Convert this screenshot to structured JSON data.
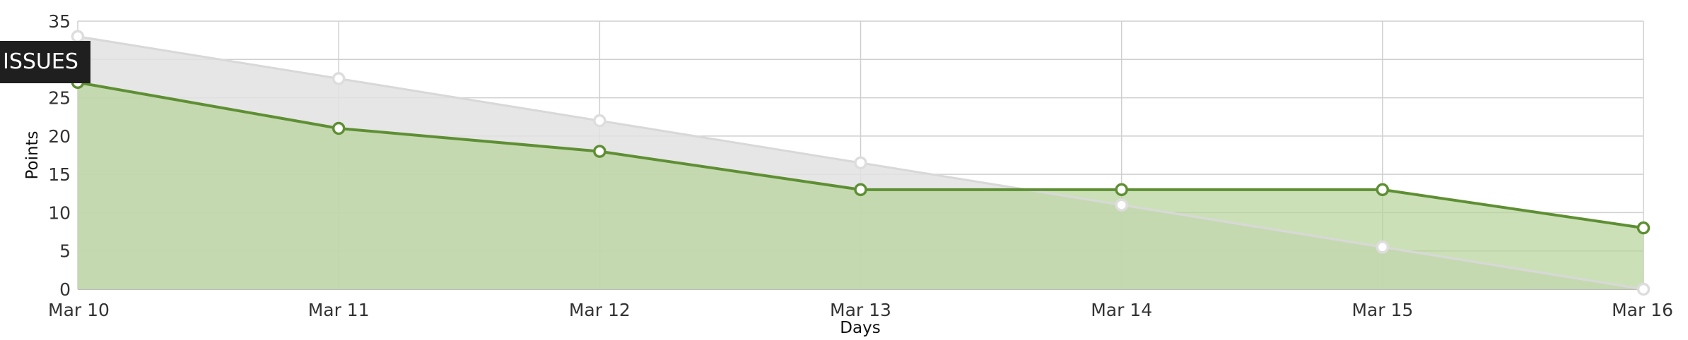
{
  "badge": {
    "label": "ISSUES"
  },
  "chart_data": {
    "type": "area",
    "title": "",
    "xlabel": "Days",
    "ylabel": "Points",
    "categories": [
      "Mar 10",
      "Mar 11",
      "Mar 12",
      "Mar 13",
      "Mar 14",
      "Mar 15",
      "Mar 16"
    ],
    "yticks": [
      0,
      5,
      10,
      15,
      20,
      25,
      30,
      35
    ],
    "ylim": [
      0,
      35
    ],
    "grid": true,
    "series": [
      {
        "role": "ideal",
        "values": [
          33,
          27.5,
          22,
          16.5,
          11,
          5.5,
          0
        ],
        "color": "#d8d8d8",
        "fill": "#e2e2e2"
      },
      {
        "role": "remaining",
        "values": [
          27,
          21,
          18,
          13,
          13,
          13,
          8
        ],
        "color": "#5e8f33",
        "fill": "#b7d39a"
      }
    ]
  }
}
